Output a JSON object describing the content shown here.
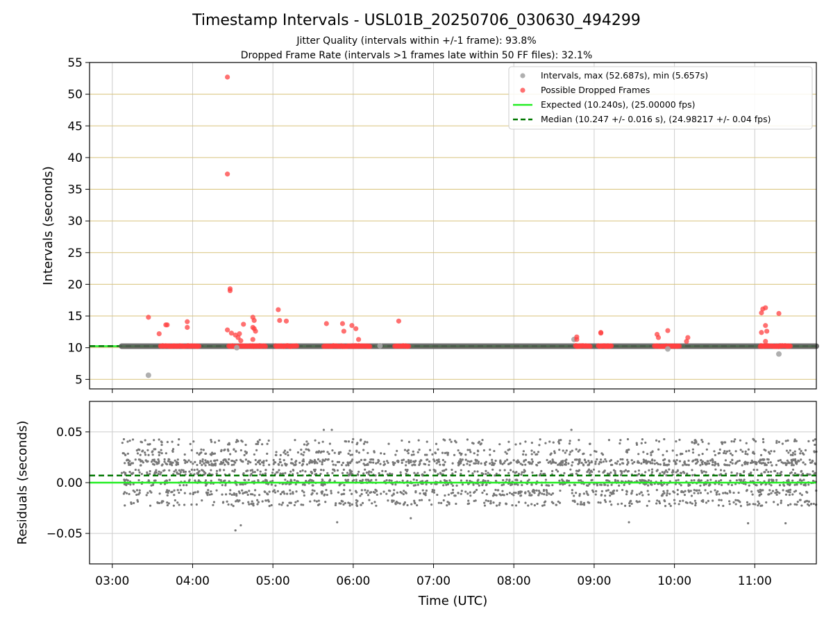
{
  "figure": {
    "title": "Timestamp Intervals - USL01B_20250706_030630_494299",
    "subtitle_1": "Jitter Quality (intervals within +/-1 frame): 93.8%",
    "subtitle_2": "Dropped Frame Rate (intervals >1 frames late within 50 FF files): 32.1%",
    "colors": {
      "intervals": "#a6a6a6",
      "dropped": "#ff4040",
      "expected": "#22ee22",
      "median": "#007700",
      "residuals": "#777777",
      "hgrid_top": "#d8c27a",
      "grid": "#cccccc"
    }
  },
  "chart_data": [
    {
      "type": "scatter",
      "panel": "intervals",
      "ylabel": "Intervals (seconds)",
      "xlabel": "",
      "xlim": [
        "02:43",
        "11:46"
      ],
      "ylim": [
        3.5,
        55
      ],
      "yticks": [
        5,
        10,
        15,
        20,
        25,
        30,
        35,
        40,
        45,
        50,
        55
      ],
      "xticks": [
        "03:00",
        "04:00",
        "05:00",
        "06:00",
        "07:00",
        "08:00",
        "09:00",
        "10:00",
        "11:00"
      ],
      "grid": true,
      "legend_position": "top-right",
      "legend": [
        {
          "label": "Intervals, max (52.687s), min (5.657s)",
          "kind": "marker",
          "color": "#a6a6a6"
        },
        {
          "label": "Possible Dropped Frames",
          "kind": "marker",
          "color": "#ff4040"
        },
        {
          "label": "Expected (10.240s), (25.00000 fps)",
          "kind": "line",
          "color": "#22ee22"
        },
        {
          "label": "Median (10.247 +/- 0.016 s), (24.98217 +/- 0.04 fps)",
          "kind": "dashed",
          "color": "#007700"
        }
      ],
      "expected_value": 10.24,
      "median_value": 10.247,
      "intervals_band": {
        "start": "03:07",
        "end": "11:46",
        "value": 10.24
      },
      "intervals_outliers": [
        {
          "x": "03:27",
          "y": 5.657
        },
        {
          "x": "04:33",
          "y": 10.0
        },
        {
          "x": "06:20",
          "y": 10.3
        },
        {
          "x": "08:45",
          "y": 11.3
        },
        {
          "x": "09:55",
          "y": 9.8
        },
        {
          "x": "11:18",
          "y": 9.0
        }
      ],
      "dropped_clusters": [
        {
          "start": "03:36",
          "end": "03:55"
        },
        {
          "start": "03:56",
          "end": "04:05"
        },
        {
          "start": "04:27",
          "end": "04:55"
        },
        {
          "start": "05:02",
          "end": "05:18"
        },
        {
          "start": "05:38",
          "end": "05:50"
        },
        {
          "start": "05:51",
          "end": "06:13"
        },
        {
          "start": "06:31",
          "end": "06:42"
        },
        {
          "start": "08:46",
          "end": "08:57"
        },
        {
          "start": "09:03",
          "end": "09:13"
        },
        {
          "start": "09:45",
          "end": "10:04"
        },
        {
          "start": "11:04",
          "end": "11:27"
        }
      ],
      "dropped_points": [
        {
          "x": "03:27",
          "y": 14.8
        },
        {
          "x": "03:35",
          "y": 12.2
        },
        {
          "x": "03:40",
          "y": 13.6
        },
        {
          "x": "03:41",
          "y": 13.6
        },
        {
          "x": "03:56",
          "y": 14.1
        },
        {
          "x": "03:56",
          "y": 13.2
        },
        {
          "x": "04:26",
          "y": 52.7
        },
        {
          "x": "04:26",
          "y": 37.4
        },
        {
          "x": "04:28",
          "y": 19.3
        },
        {
          "x": "04:28",
          "y": 19.0
        },
        {
          "x": "04:26",
          "y": 12.8
        },
        {
          "x": "04:29",
          "y": 12.3
        },
        {
          "x": "04:32",
          "y": 12.0
        },
        {
          "x": "04:34",
          "y": 11.6
        },
        {
          "x": "04:35",
          "y": 12.2
        },
        {
          "x": "04:36",
          "y": 11.1
        },
        {
          "x": "04:38",
          "y": 13.7
        },
        {
          "x": "04:45",
          "y": 14.8
        },
        {
          "x": "04:46",
          "y": 14.3
        },
        {
          "x": "04:45",
          "y": 13.2
        },
        {
          "x": "04:46",
          "y": 13.0
        },
        {
          "x": "04:47",
          "y": 12.6
        },
        {
          "x": "04:45",
          "y": 11.3
        },
        {
          "x": "05:04",
          "y": 16.0
        },
        {
          "x": "05:05",
          "y": 14.3
        },
        {
          "x": "05:10",
          "y": 14.2
        },
        {
          "x": "05:40",
          "y": 13.8
        },
        {
          "x": "05:52",
          "y": 13.8
        },
        {
          "x": "05:53",
          "y": 12.6
        },
        {
          "x": "05:59",
          "y": 13.5
        },
        {
          "x": "06:02",
          "y": 13.0
        },
        {
          "x": "06:04",
          "y": 11.3
        },
        {
          "x": "06:34",
          "y": 14.2
        },
        {
          "x": "08:47",
          "y": 11.7
        },
        {
          "x": "08:47",
          "y": 11.3
        },
        {
          "x": "09:05",
          "y": 12.4
        },
        {
          "x": "09:05",
          "y": 12.3
        },
        {
          "x": "09:47",
          "y": 12.1
        },
        {
          "x": "09:48",
          "y": 11.6
        },
        {
          "x": "09:55",
          "y": 12.7
        },
        {
          "x": "10:10",
          "y": 11.6
        },
        {
          "x": "10:09",
          "y": 11.0
        },
        {
          "x": "11:05",
          "y": 15.5
        },
        {
          "x": "11:06",
          "y": 16.1
        },
        {
          "x": "11:08",
          "y": 16.3
        },
        {
          "x": "11:05",
          "y": 12.4
        },
        {
          "x": "11:08",
          "y": 13.5
        },
        {
          "x": "11:09",
          "y": 12.6
        },
        {
          "x": "11:08",
          "y": 11.0
        },
        {
          "x": "11:18",
          "y": 15.4
        }
      ]
    },
    {
      "type": "scatter",
      "panel": "residuals",
      "ylabel": "Residuals (seconds)",
      "xlabel": "Time (UTC)",
      "xlim": [
        "02:43",
        "11:46"
      ],
      "ylim": [
        -0.08,
        0.08
      ],
      "yticks": [
        -0.05,
        0.0,
        0.05
      ],
      "ytick_labels": [
        "−0.05",
        "0.00",
        "0.05"
      ],
      "xticks": [
        "03:00",
        "04:00",
        "05:00",
        "06:00",
        "07:00",
        "08:00",
        "09:00",
        "10:00",
        "11:00"
      ],
      "grid": true,
      "expected_residual": 0.0,
      "median_residual": 0.007,
      "residual_points": {
        "start": "03:07",
        "end": "11:46",
        "count": 2600,
        "levels": [
          -0.02,
          -0.01,
          0.0,
          0.01,
          0.02,
          0.03,
          0.04
        ],
        "level_weights": [
          0.1,
          0.14,
          0.2,
          0.16,
          0.24,
          0.1,
          0.06
        ],
        "spread": 0.003,
        "extremes": [
          {
            "x": "04:32",
            "y": -0.047
          },
          {
            "x": "04:36",
            "y": -0.042
          },
          {
            "x": "05:38",
            "y": 0.052
          },
          {
            "x": "05:44",
            "y": 0.052
          },
          {
            "x": "08:43",
            "y": 0.052
          },
          {
            "x": "05:48",
            "y": -0.039
          },
          {
            "x": "06:43",
            "y": -0.035
          },
          {
            "x": "10:55",
            "y": -0.04
          },
          {
            "x": "11:23",
            "y": -0.04
          },
          {
            "x": "09:26",
            "y": -0.039
          }
        ]
      }
    }
  ]
}
